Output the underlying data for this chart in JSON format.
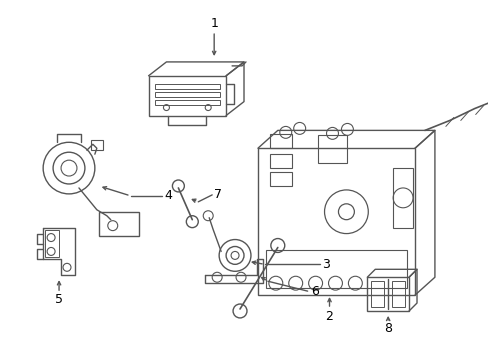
{
  "background_color": "#ffffff",
  "line_color": "#555555",
  "line_width": 1.0,
  "fig_width": 4.89,
  "fig_height": 3.6,
  "dpi": 100
}
